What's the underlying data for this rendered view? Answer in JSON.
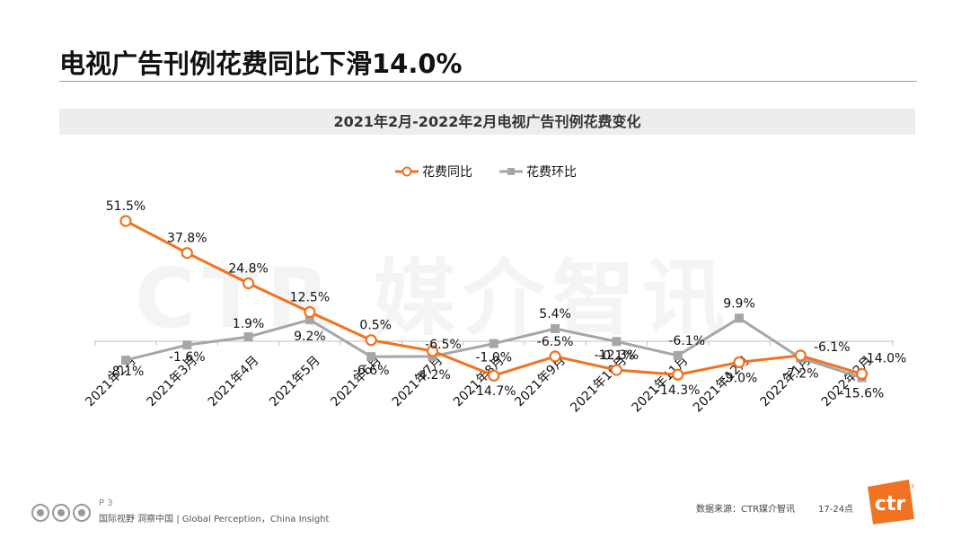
{
  "page": {
    "title": "电视广告刊例花费同比下滑14.0%",
    "watermark": "CTR 媒介智讯",
    "page_num": "P 3",
    "slogan": "国际视野  洞察中国 | Global Perception，China Insight",
    "source": "数据来源：CTR媒介智讯",
    "time_note": "17-24点",
    "logo_text": "ctr"
  },
  "colors": {
    "yoy": "#f07321",
    "mom": "#a6a6a6",
    "axis": "#bfbfbf",
    "subtitle_bg": "#ededed",
    "logo": "#f07321"
  },
  "chart_data": {
    "type": "line",
    "title": "2021年2月-2022年2月电视广告刊例花费变化",
    "categories": [
      "2021年2月",
      "2021年3月",
      "2021年4月",
      "2021年5月",
      "2021年6月",
      "2021年7月",
      "2021年8月",
      "2021年9月",
      "2021年10月",
      "2021年11月",
      "2021年12月",
      "2022年1月",
      "2022年2月"
    ],
    "series": [
      {
        "name": "花费同比",
        "marker": "circle",
        "values": [
          51.5,
          37.8,
          24.8,
          12.5,
          0.5,
          -4.2,
          -14.7,
          -6.5,
          -12.3,
          -14.3,
          -9.0,
          -6.1,
          -14.0
        ],
        "labels": [
          "51.5%",
          "37.8%",
          "24.8%",
          "12.5%",
          "0.5%",
          "-4.2%",
          "-14.7%",
          "-6.5%",
          "-12.3%",
          "-14.3%",
          "-9.0%",
          "-6.1%",
          "-14.0%"
        ]
      },
      {
        "name": "花费环比",
        "marker": "square",
        "values": [
          -8.1,
          -1.6,
          1.9,
          9.2,
          -6.6,
          -6.5,
          -1.0,
          5.4,
          -0.1,
          -6.1,
          9.9,
          -7.2,
          -15.6
        ],
        "labels": [
          "-8.1%",
          "-1.6%",
          "1.9%",
          "9.2%",
          "-6.6%",
          "-6.5%",
          "-1.0%",
          "5.4%",
          "-0.1%",
          "-6.1%",
          "9.9%",
          "-7.2%",
          "-15.6%"
        ]
      }
    ],
    "legend_position": "top-center",
    "grid": false,
    "ylim": [
      -20,
      55
    ]
  }
}
